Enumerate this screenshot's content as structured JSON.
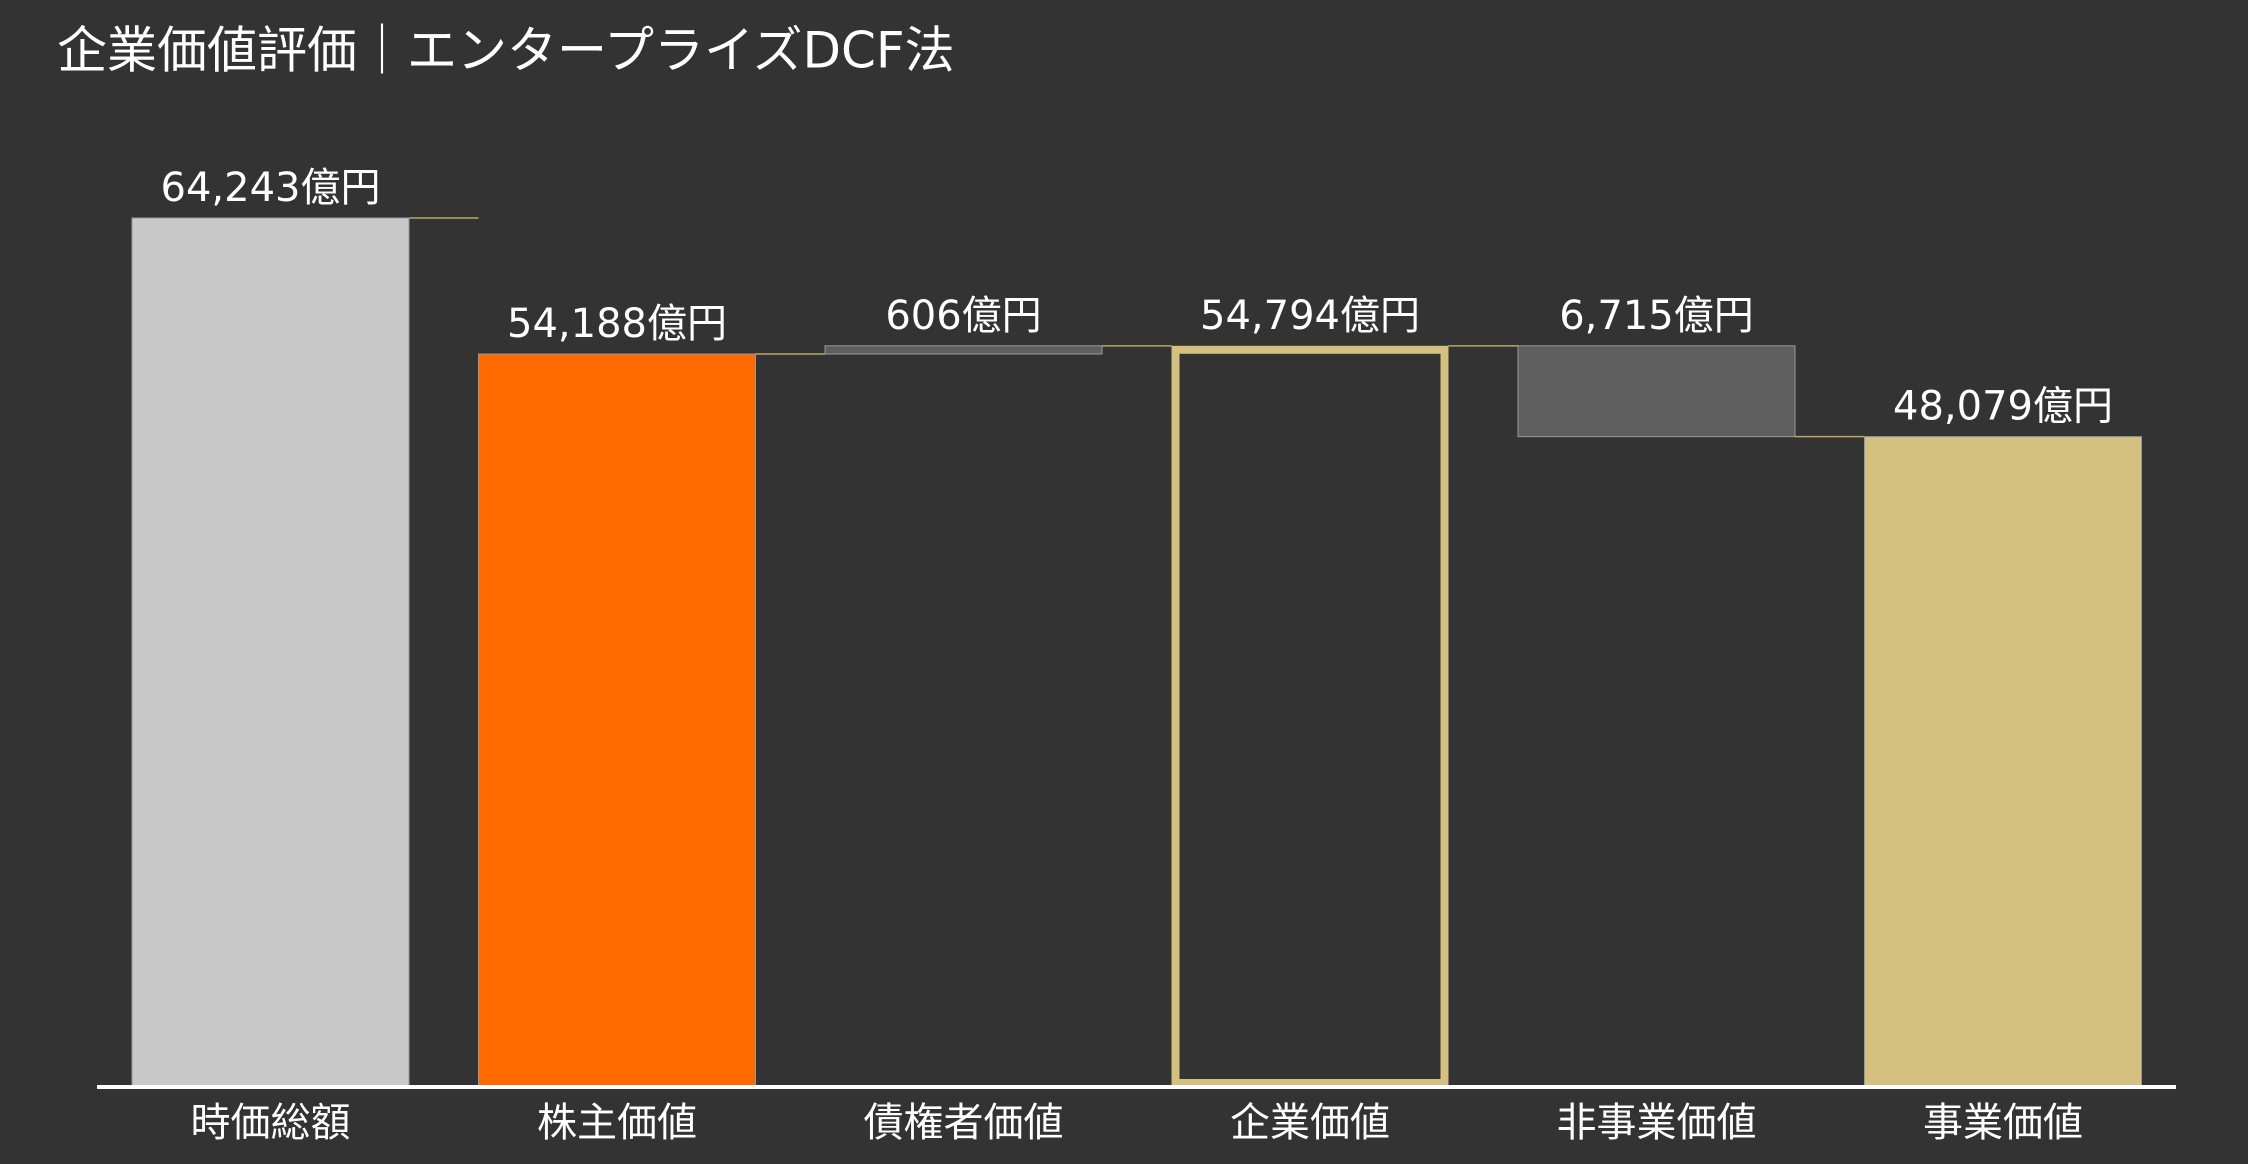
{
  "chart_data": {
    "type": "waterfall",
    "title": "企業価値評価｜エンタープライズDCF法",
    "categories": [
      "時価総額",
      "株主価値",
      "債権者価値",
      "企業価値",
      "非事業価値",
      "事業価値"
    ],
    "values": [
      64243,
      54188,
      606,
      54794,
      6715,
      48079
    ],
    "value_labels": [
      "64,243億円",
      "54,188億円",
      "606億円",
      "54,794億円",
      "6,715億円",
      "48,079億円"
    ],
    "measure": [
      "total",
      "total",
      "increase",
      "total",
      "decrease",
      "total"
    ],
    "colors": [
      "#c8c8c8",
      "#ff6a00",
      "#5f5f5f",
      "#d4c17f",
      "#5f5f5f",
      "#d4c17f"
    ],
    "outlined": [
      false,
      false,
      false,
      true,
      false,
      false
    ]
  }
}
